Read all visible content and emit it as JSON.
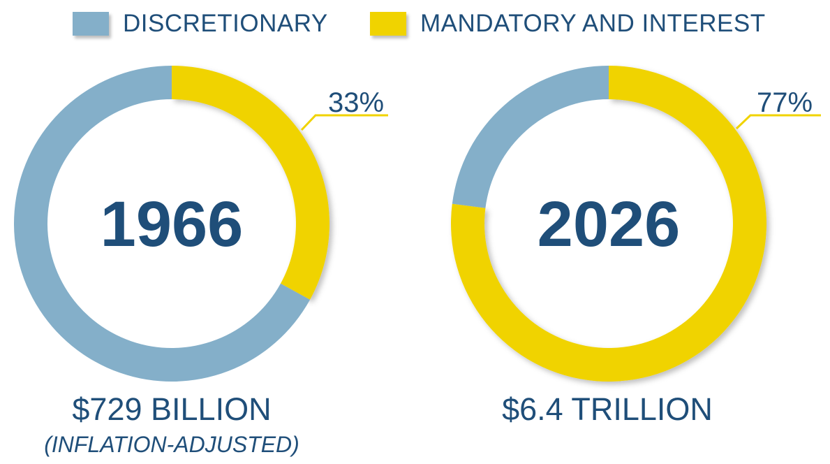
{
  "legend": [
    {
      "label": "DISCRETIONARY",
      "color": "#84afc9"
    },
    {
      "label": "MANDATORY AND INTEREST",
      "color": "#f0d300"
    }
  ],
  "chart_data": [
    {
      "type": "pie",
      "variant": "donut",
      "title": "1966",
      "categories": [
        "DISCRETIONARY",
        "MANDATORY AND INTEREST"
      ],
      "values": [
        67,
        33
      ],
      "data_label": "33%",
      "total_label": "$729 BILLION",
      "note": "(INFLATION-ADJUSTED)"
    },
    {
      "type": "pie",
      "variant": "donut",
      "title": "2026",
      "categories": [
        "DISCRETIONARY",
        "MANDATORY AND INTEREST"
      ],
      "values": [
        23,
        77
      ],
      "data_label": "77%",
      "total_label": "$6.4 TRILLION"
    }
  ],
  "colors": {
    "text": "#1f4e79",
    "discretionary": "#84afc9",
    "mandatory": "#f0d300"
  }
}
